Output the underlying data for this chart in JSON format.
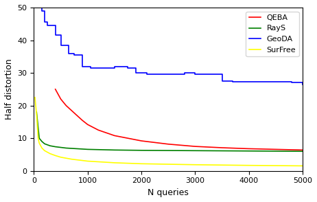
{
  "title": "",
  "xlabel": "N queries",
  "ylabel": "Half distortion",
  "xlim": [
    0,
    5000
  ],
  "ylim": [
    0,
    50
  ],
  "legend": [
    "QEBA",
    "RayS",
    "GeoDA",
    "SurFree"
  ],
  "colors": [
    "red",
    "green",
    "blue",
    "yellow"
  ],
  "QEBA": {
    "x": [
      400,
      500,
      600,
      700,
      800,
      900,
      1000,
      1200,
      1500,
      2000,
      2500,
      3000,
      3500,
      4000,
      4500,
      5000
    ],
    "y": [
      25.0,
      22.0,
      20.0,
      18.5,
      17.0,
      15.5,
      14.2,
      12.5,
      10.8,
      9.2,
      8.2,
      7.5,
      7.1,
      6.8,
      6.6,
      6.4
    ]
  },
  "RayS": {
    "x": [
      50,
      100,
      150,
      200,
      300,
      400,
      500,
      600,
      700,
      800,
      1000,
      1500,
      2000,
      3000,
      4000,
      5000
    ],
    "y": [
      18.0,
      10.0,
      9.0,
      8.3,
      7.7,
      7.4,
      7.2,
      7.0,
      6.9,
      6.8,
      6.6,
      6.4,
      6.3,
      6.2,
      6.1,
      6.0
    ]
  },
  "GeoDA": {
    "x": [
      75,
      150,
      200,
      250,
      400,
      500,
      650,
      750,
      900,
      1050,
      1500,
      1750,
      1900,
      2100,
      2800,
      3000,
      3500,
      3700,
      3850,
      4200,
      4800,
      5000
    ],
    "y": [
      50.0,
      49.0,
      45.5,
      44.5,
      41.5,
      38.5,
      36.0,
      35.5,
      32.0,
      31.5,
      32.0,
      31.5,
      30.0,
      29.5,
      30.0,
      29.5,
      27.5,
      27.2,
      27.2,
      27.2,
      27.0,
      26.5
    ]
  },
  "SurFree": {
    "x": [
      20,
      50,
      80,
      100,
      150,
      200,
      300,
      400,
      500,
      700,
      1000,
      1500,
      2000,
      3000,
      4000,
      5000
    ],
    "y": [
      22.5,
      17.5,
      10.0,
      8.5,
      7.0,
      6.2,
      5.3,
      4.7,
      4.2,
      3.6,
      3.0,
      2.5,
      2.2,
      1.9,
      1.7,
      1.55
    ]
  },
  "figsize": [
    4.62,
    2.94
  ],
  "dpi": 100
}
